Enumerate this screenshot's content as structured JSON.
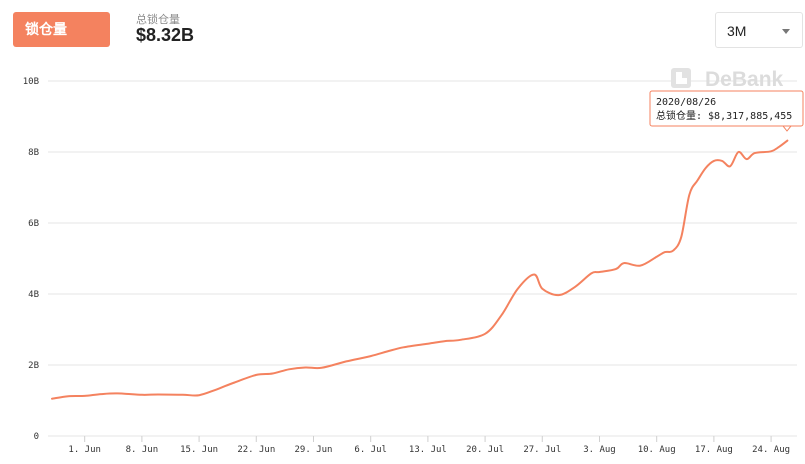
{
  "header": {
    "tab_label": "锁仓量",
    "metric_label": "总锁仓量",
    "metric_value": "$8.32B",
    "range_value": "3M"
  },
  "watermark": {
    "text": "DeBank"
  },
  "tooltip": {
    "date": "2020/08/26",
    "text": "总锁仓量: $8,317,885,455"
  },
  "colors": {
    "line": "#f4825f",
    "accent": "#f4825f",
    "grid": "#e6e6e6"
  },
  "chart_data": {
    "type": "line",
    "title": "",
    "xlabel": "",
    "ylabel": "",
    "x_ticks": [
      "1. Jun",
      "8. Jun",
      "15. Jun",
      "22. Jun",
      "29. Jun",
      "6. Jul",
      "13. Jul",
      "20. Jul",
      "27. Jul",
      "3. Aug",
      "10. Aug",
      "17. Aug",
      "24. Aug"
    ],
    "y_ticks": [
      "0",
      "2B",
      "4B",
      "6B",
      "8B",
      "10B"
    ],
    "ylim": [
      0,
      10
    ],
    "y_unit": "B",
    "series": [
      {
        "x": [
          "2020-05-28",
          "2020-05-30",
          "2020-06-01",
          "2020-06-03",
          "2020-06-05",
          "2020-06-08",
          "2020-06-10",
          "2020-06-13",
          "2020-06-15",
          "2020-06-17",
          "2020-06-19",
          "2020-06-22",
          "2020-06-24",
          "2020-06-26",
          "2020-06-28",
          "2020-06-30",
          "2020-07-03",
          "2020-07-06",
          "2020-07-08",
          "2020-07-10",
          "2020-07-13",
          "2020-07-15",
          "2020-07-17",
          "2020-07-20",
          "2020-07-22",
          "2020-07-24",
          "2020-07-26",
          "2020-07-27",
          "2020-07-29",
          "2020-07-31",
          "2020-08-02",
          "2020-08-03",
          "2020-08-05",
          "2020-08-06",
          "2020-08-08",
          "2020-08-10",
          "2020-08-11",
          "2020-08-12",
          "2020-08-13",
          "2020-08-14",
          "2020-08-15",
          "2020-08-16",
          "2020-08-17",
          "2020-08-18",
          "2020-08-19",
          "2020-08-20",
          "2020-08-21",
          "2020-08-22",
          "2020-08-24",
          "2020-08-25",
          "2020-08-26"
        ],
        "values": [
          1.05,
          1.12,
          1.13,
          1.18,
          1.2,
          1.16,
          1.17,
          1.16,
          1.15,
          1.3,
          1.48,
          1.72,
          1.76,
          1.88,
          1.93,
          1.92,
          2.1,
          2.25,
          2.38,
          2.5,
          2.6,
          2.67,
          2.71,
          2.88,
          3.4,
          4.15,
          4.55,
          4.15,
          3.97,
          4.2,
          4.58,
          4.62,
          4.7,
          4.87,
          4.8,
          5.05,
          5.18,
          5.22,
          5.6,
          6.8,
          7.2,
          7.55,
          7.75,
          7.75,
          7.6,
          8.0,
          7.8,
          7.97,
          8.02,
          8.15,
          8.32
        ]
      }
    ]
  }
}
